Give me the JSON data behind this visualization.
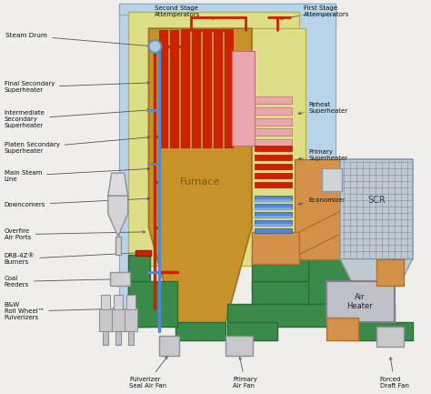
{
  "colors": {
    "furnace_fill": "#c8922a",
    "furnace_border": "#a07020",
    "red_pipe": "#cc2200",
    "blue_pipe": "#5588cc",
    "green_duct": "#3a8a4a",
    "yellow_bg": "#dede88",
    "light_blue_bg": "#b8d4e8",
    "scr_fill": "#c0c8d0",
    "scr_line": "#8899aa",
    "air_heater_fill": "#c0c0c8",
    "orange_fill": "#d4914a",
    "pink_fill": "#e8a8b0",
    "gray_equip": "#c0c0c4",
    "gray_dark": "#909098",
    "white_bg": "#f0eeea",
    "border": "#707070"
  },
  "labels": {
    "steam_drum": "Steam Drum",
    "second_stage_att": "Second Stage\nAttemperators",
    "first_stage_att": "First Stage\nAttemperators",
    "final_secondary_sh": "Final Secondary\nSuperheater",
    "intermediate_secondary_sh": "Intermediate\nSecondary\nSuperheater",
    "platen_secondary_sh": "Platen Secondary\nSuperheater",
    "main_steam_line": "Main Steam\nLine",
    "downcomers": "Downcomers",
    "overfire_air": "Overfire\nAir Ports",
    "drb4z": "DRB-4Z®\nBurners",
    "coal_feeders": "Coal\nFeeders",
    "bw_pulverizers": "B&W\nRoll Wheel™\nPulverizers",
    "pulverizer_seal": "Pulverizer\nSeal Air Fan",
    "furnace": "Furnace",
    "reheat_sh": "Reheat\nSuperheater",
    "primary_sh": "Primary\nSuperheater",
    "economizer": "Economizer",
    "scr": "SCR",
    "air_heater": "Air\nHeater",
    "primary_air_fan": "Primary\nAir Fan",
    "forced_draft_fan": "Forced\nDraft Fan"
  }
}
